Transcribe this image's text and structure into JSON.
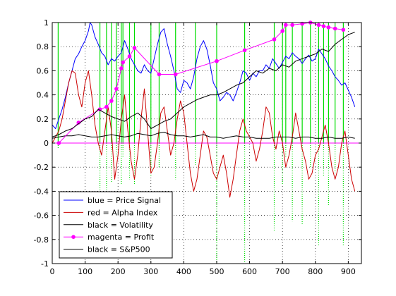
{
  "chart_data": {
    "type": "line",
    "title": "",
    "xlabel": "",
    "ylabel": "",
    "xlim": [
      0,
      940
    ],
    "ylim": [
      -1,
      1
    ],
    "grid": true,
    "xticks": [
      0,
      100,
      200,
      300,
      400,
      500,
      600,
      700,
      800,
      900
    ],
    "yticks": [
      -1,
      -0.8,
      -0.6,
      -0.4,
      -0.2,
      0,
      0.2,
      0.4,
      0.6,
      0.8,
      1
    ],
    "xtick_labels": [
      "0",
      "100",
      "200",
      "300",
      "400",
      "500",
      "600",
      "700",
      "800",
      "900"
    ],
    "ytick_labels": [
      "-1",
      "-0.8",
      "-0.6",
      "-0.4",
      "-0.2",
      "0",
      "0.2",
      "0.4",
      "0.6",
      "0.8",
      "1"
    ],
    "legend_position": "bottom-left",
    "colors": {
      "blue": "#0000ff",
      "red": "#cc0000",
      "black": "#000000",
      "magenta": "#ff00ff",
      "green": "#00dd00"
    },
    "legend": [
      {
        "label": "blue = Price Signal",
        "color": "#0000ff",
        "marker": false
      },
      {
        "label": "red = Alpha Index",
        "color": "#cc0000",
        "marker": false
      },
      {
        "label": "black = Volatility",
        "color": "#000000",
        "marker": false
      },
      {
        "label": "magenta = Profit",
        "color": "#ff00ff",
        "marker": true
      },
      {
        "label": "black = S&P500",
        "color": "#000000",
        "marker": false
      }
    ],
    "series": [
      {
        "color": "#0000ff",
        "x": [
          0,
          10,
          20,
          30,
          40,
          50,
          60,
          70,
          80,
          90,
          100,
          110,
          115,
          120,
          130,
          140,
          150,
          160,
          170,
          180,
          190,
          200,
          210,
          220,
          230,
          240,
          250,
          260,
          270,
          280,
          290,
          300,
          310,
          320,
          330,
          340,
          350,
          360,
          370,
          380,
          390,
          400,
          410,
          420,
          430,
          440,
          450,
          460,
          470,
          480,
          490,
          500,
          510,
          520,
          530,
          540,
          550,
          560,
          570,
          580,
          590,
          600,
          610,
          620,
          630,
          640,
          650,
          660,
          670,
          680,
          690,
          700,
          710,
          720,
          730,
          740,
          750,
          760,
          770,
          780,
          790,
          800,
          810,
          820,
          830,
          840,
          850,
          860,
          870,
          880,
          890,
          900,
          910,
          920
        ],
        "y": [
          0.15,
          0.12,
          0.2,
          0.28,
          0.38,
          0.5,
          0.6,
          0.7,
          0.74,
          0.8,
          0.85,
          0.93,
          1.0,
          0.98,
          0.88,
          0.82,
          0.75,
          0.72,
          0.65,
          0.7,
          0.68,
          0.72,
          0.75,
          0.85,
          0.78,
          0.7,
          0.65,
          0.6,
          0.58,
          0.65,
          0.6,
          0.58,
          0.7,
          0.82,
          0.92,
          0.95,
          0.82,
          0.72,
          0.6,
          0.45,
          0.42,
          0.52,
          0.5,
          0.45,
          0.55,
          0.7,
          0.8,
          0.85,
          0.78,
          0.65,
          0.5,
          0.45,
          0.35,
          0.38,
          0.42,
          0.4,
          0.35,
          0.42,
          0.5,
          0.6,
          0.58,
          0.52,
          0.58,
          0.55,
          0.6,
          0.6,
          0.65,
          0.62,
          0.7,
          0.66,
          0.62,
          0.67,
          0.72,
          0.7,
          0.75,
          0.72,
          0.7,
          0.66,
          0.7,
          0.73,
          0.68,
          0.7,
          0.78,
          0.74,
          0.7,
          0.64,
          0.6,
          0.55,
          0.52,
          0.48,
          0.5,
          0.44,
          0.38,
          0.3
        ]
      },
      {
        "color": "#cc0000",
        "x": [
          0,
          10,
          20,
          30,
          40,
          50,
          60,
          70,
          80,
          90,
          100,
          110,
          120,
          130,
          140,
          150,
          160,
          170,
          180,
          190,
          200,
          210,
          220,
          230,
          240,
          250,
          260,
          270,
          280,
          290,
          300,
          310,
          320,
          330,
          340,
          350,
          360,
          370,
          380,
          390,
          400,
          410,
          420,
          430,
          440,
          450,
          460,
          470,
          480,
          490,
          500,
          510,
          520,
          530,
          540,
          550,
          560,
          570,
          580,
          590,
          600,
          610,
          620,
          630,
          640,
          650,
          660,
          670,
          680,
          690,
          700,
          710,
          720,
          730,
          740,
          750,
          760,
          770,
          780,
          790,
          800,
          810,
          820,
          830,
          840,
          850,
          860,
          870,
          880,
          890,
          900,
          910,
          920
        ],
        "y": [
          0.0,
          0.05,
          0.1,
          0.2,
          0.35,
          0.5,
          0.6,
          0.58,
          0.4,
          0.3,
          0.5,
          0.6,
          0.4,
          0.15,
          0.0,
          -0.1,
          0.1,
          0.3,
          0.1,
          -0.3,
          -0.1,
          0.2,
          0.4,
          0.1,
          -0.15,
          -0.3,
          -0.1,
          0.2,
          0.45,
          0.1,
          -0.25,
          -0.2,
          0.0,
          0.25,
          0.3,
          0.1,
          -0.1,
          0.0,
          0.2,
          0.35,
          0.25,
          0.0,
          -0.25,
          -0.4,
          -0.3,
          -0.1,
          0.1,
          0.05,
          -0.1,
          -0.25,
          -0.3,
          -0.2,
          -0.1,
          -0.25,
          -0.45,
          -0.3,
          -0.1,
          0.1,
          0.2,
          0.1,
          0.05,
          0.0,
          -0.15,
          -0.05,
          0.1,
          0.3,
          0.25,
          0.05,
          -0.05,
          0.1,
          0.0,
          -0.2,
          -0.1,
          0.05,
          0.25,
          0.1,
          -0.05,
          -0.15,
          -0.3,
          -0.25,
          -0.1,
          -0.05,
          0.05,
          0.15,
          0.0,
          -0.2,
          -0.3,
          -0.2,
          0.0,
          0.1,
          -0.1,
          -0.3,
          -0.4
        ]
      },
      {
        "color": "#000000",
        "x": [
          0,
          20,
          40,
          60,
          80,
          100,
          120,
          140,
          160,
          180,
          200,
          220,
          240,
          260,
          280,
          300,
          320,
          340,
          360,
          380,
          400,
          420,
          440,
          460,
          480,
          500,
          520,
          540,
          560,
          580,
          600,
          620,
          640,
          660,
          680,
          700,
          720,
          740,
          760,
          780,
          800,
          820,
          840,
          860,
          880,
          900,
          920
        ],
        "y": [
          0.04,
          0.05,
          0.06,
          0.06,
          0.07,
          0.06,
          0.05,
          0.05,
          0.06,
          0.07,
          0.06,
          0.05,
          0.06,
          0.08,
          0.07,
          0.06,
          0.08,
          0.09,
          0.07,
          0.06,
          0.06,
          0.05,
          0.06,
          0.07,
          0.05,
          0.05,
          0.04,
          0.05,
          0.06,
          0.05,
          0.05,
          0.04,
          0.04,
          0.04,
          0.05,
          0.05,
          0.05,
          0.04,
          0.05,
          0.05,
          0.04,
          0.04,
          0.05,
          0.04,
          0.04,
          0.05,
          0.04
        ]
      },
      {
        "color": "#ff00ff",
        "markers": true,
        "x": [
          20,
          80,
          145,
          165,
          180,
          195,
          210,
          215,
          235,
          250,
          325,
          375,
          500,
          585,
          675,
          700,
          710,
          730,
          760,
          785,
          810,
          825,
          840,
          860,
          885
        ],
        "y": [
          0.0,
          0.17,
          0.28,
          0.3,
          0.35,
          0.45,
          0.62,
          0.67,
          0.72,
          0.79,
          0.57,
          0.57,
          0.68,
          0.77,
          0.86,
          0.93,
          0.98,
          0.98,
          0.99,
          1.0,
          0.98,
          0.97,
          0.96,
          0.95,
          0.94
        ]
      },
      {
        "color": "#000000",
        "x": [
          0,
          20,
          40,
          60,
          80,
          100,
          120,
          140,
          160,
          180,
          200,
          220,
          240,
          260,
          280,
          300,
          320,
          340,
          360,
          380,
          400,
          420,
          440,
          460,
          480,
          500,
          520,
          540,
          560,
          580,
          600,
          620,
          640,
          660,
          680,
          700,
          720,
          740,
          760,
          780,
          800,
          820,
          840,
          860,
          880,
          900,
          920
        ],
        "y": [
          0.05,
          0.07,
          0.1,
          0.12,
          0.16,
          0.2,
          0.22,
          0.28,
          0.25,
          0.22,
          0.2,
          0.18,
          0.22,
          0.25,
          0.2,
          0.12,
          0.15,
          0.18,
          0.2,
          0.25,
          0.3,
          0.33,
          0.36,
          0.38,
          0.4,
          0.4,
          0.42,
          0.45,
          0.48,
          0.5,
          0.55,
          0.6,
          0.58,
          0.62,
          0.6,
          0.65,
          0.63,
          0.68,
          0.7,
          0.72,
          0.74,
          0.78,
          0.76,
          0.82,
          0.86,
          0.9,
          0.92
        ]
      }
    ],
    "signal_lines": [
      {
        "x": 18,
        "top": 1.0,
        "bottom": -0.05
      },
      {
        "x": 145,
        "top": 1.0,
        "bottom": -0.4
      },
      {
        "x": 165,
        "top": 1.0,
        "bottom": -0.4
      },
      {
        "x": 180,
        "top": 1.0,
        "bottom": -0.33
      },
      {
        "x": 195,
        "top": 1.0,
        "bottom": -0.12
      },
      {
        "x": 210,
        "top": 1.0,
        "bottom": -0.35
      },
      {
        "x": 215,
        "top": 1.0,
        "bottom": -0.12
      },
      {
        "x": 235,
        "top": 1.0,
        "bottom": -0.3
      },
      {
        "x": 250,
        "top": 1.0,
        "bottom": -0.35
      },
      {
        "x": 300,
        "top": 1.0,
        "bottom": -0.27
      },
      {
        "x": 325,
        "top": 1.0,
        "bottom": -0.2
      },
      {
        "x": 375,
        "top": 1.0,
        "bottom": -0.3
      },
      {
        "x": 435,
        "top": 1.0,
        "bottom": -0.18
      },
      {
        "x": 500,
        "top": 1.0,
        "bottom": -1.0
      },
      {
        "x": 585,
        "top": 1.0,
        "bottom": -1.0
      },
      {
        "x": 675,
        "top": 1.0,
        "bottom": -0.73
      },
      {
        "x": 700,
        "top": 1.0,
        "bottom": -0.35
      },
      {
        "x": 710,
        "top": 1.0,
        "bottom": -0.12
      },
      {
        "x": 730,
        "top": 1.0,
        "bottom": -0.65
      },
      {
        "x": 760,
        "top": 1.0,
        "bottom": -0.68
      },
      {
        "x": 785,
        "top": 1.0,
        "bottom": -0.2
      },
      {
        "x": 810,
        "top": 1.0,
        "bottom": -0.85
      },
      {
        "x": 825,
        "top": 1.0,
        "bottom": -0.28
      },
      {
        "x": 840,
        "top": 1.0,
        "bottom": -0.52
      },
      {
        "x": 860,
        "top": 1.0,
        "bottom": -0.25
      },
      {
        "x": 885,
        "top": 1.0,
        "bottom": -0.85
      }
    ]
  }
}
